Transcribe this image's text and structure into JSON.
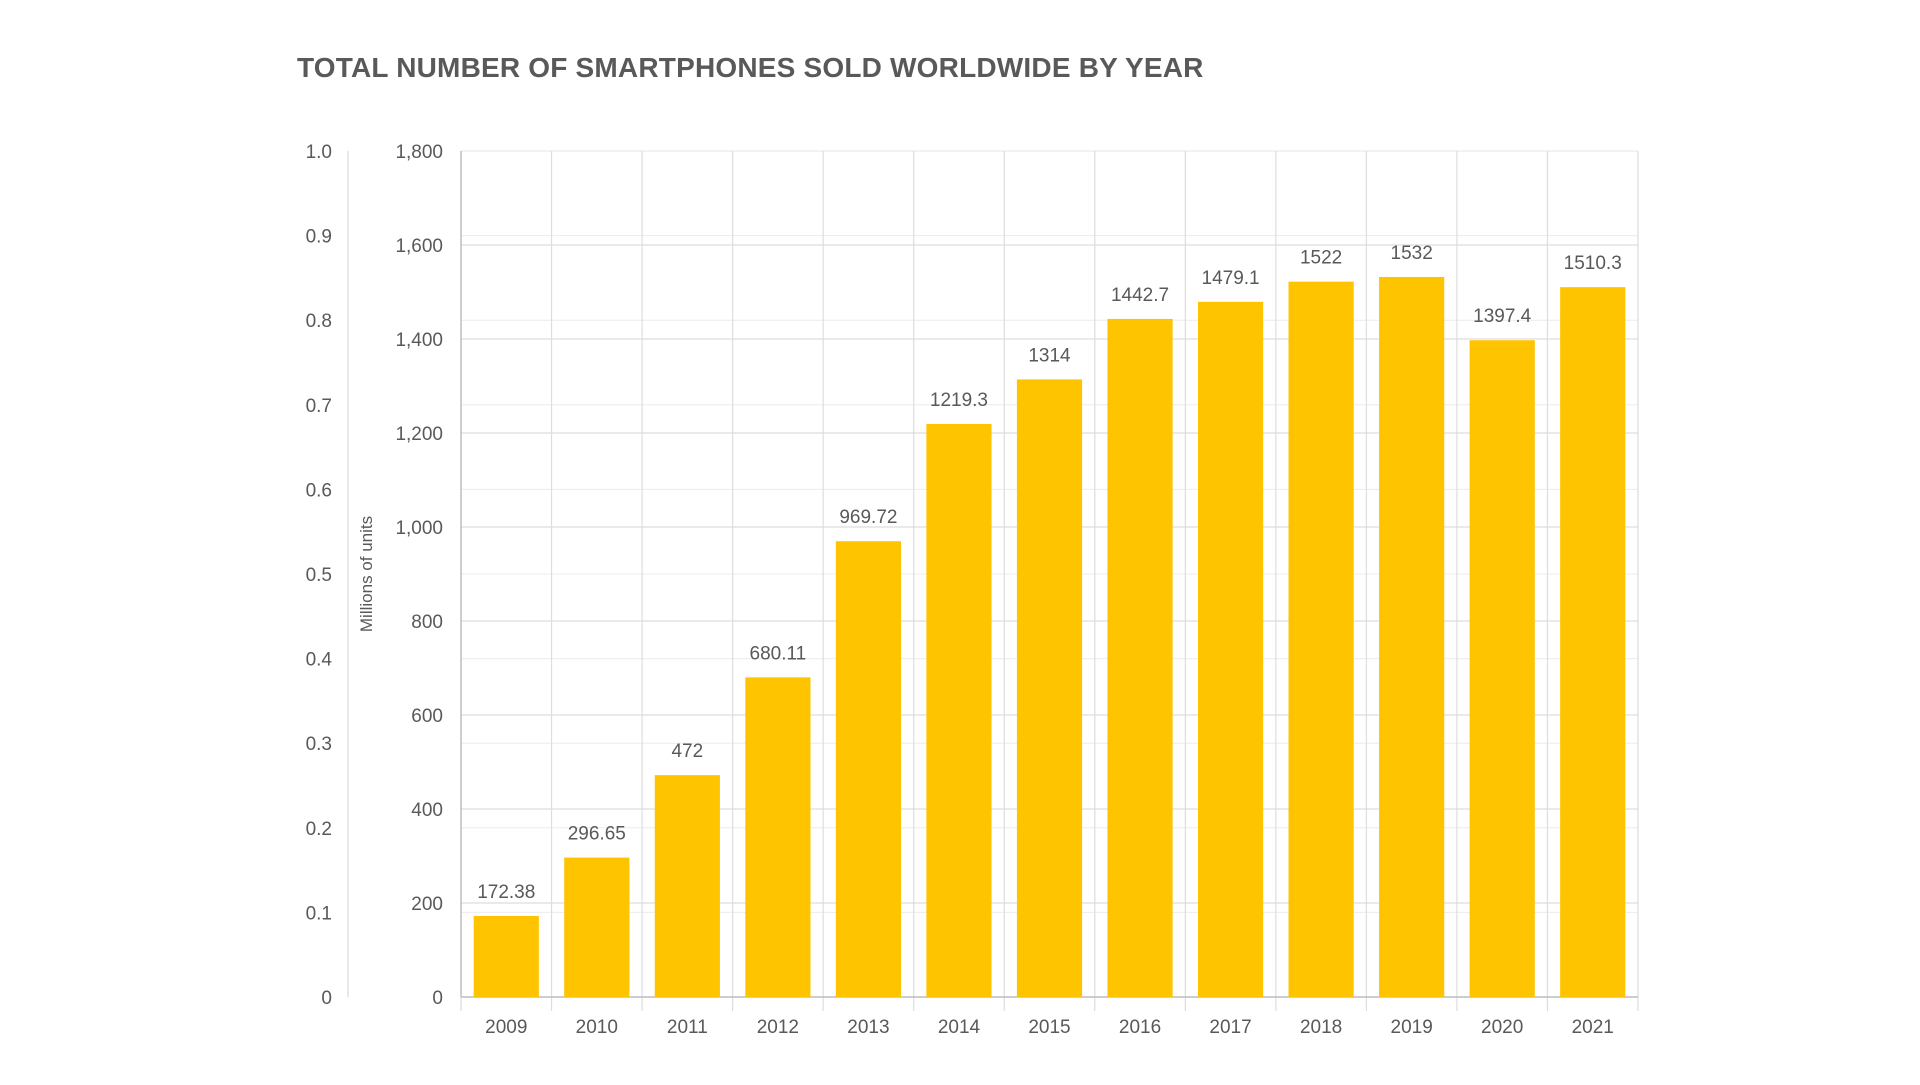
{
  "chart_data": {
    "type": "bar",
    "title": "TOTAL NUMBER OF SMARTPHONES SOLD WORLDWIDE BY YEAR",
    "xlabel": "",
    "ylabel": "Millions of units",
    "categories": [
      "2009",
      "2010",
      "2011",
      "2012",
      "2013",
      "2014",
      "2015",
      "2016",
      "2017",
      "2018",
      "2019",
      "2020",
      "2021"
    ],
    "series": [
      {
        "values": [
          172.38,
          296.65,
          472,
          680.11,
          969.72,
          1219.3,
          1314,
          1442.7,
          1479.1,
          1522,
          1532,
          1397.4,
          1510.3
        ]
      }
    ],
    "data_labels": [
      "172.38",
      "296.65",
      "472",
      "680.11",
      "969.72",
      "1219.3",
      "1314",
      "1442.7",
      "1479.1",
      "1522",
      "1532",
      "1397.4",
      "1510.3"
    ],
    "ylim": [
      0,
      1800
    ],
    "y_ticks": [
      0,
      200,
      400,
      600,
      800,
      1000,
      1200,
      1400,
      1600,
      1800
    ],
    "y_tick_labels": [
      "0",
      "200",
      "400",
      "600",
      "800",
      "1,000",
      "1,200",
      "1,400",
      "1,600",
      "1,800"
    ],
    "secondary_ylim": [
      0,
      1
    ],
    "secondary_y_tick_labels": [
      "0",
      "0.1",
      "0.2",
      "0.3",
      "0.4",
      "0.5",
      "0.6",
      "0.7",
      "0.8",
      "0.9",
      "1.0"
    ],
    "grid": true,
    "legend": "none",
    "colors": {
      "bar": "#FFC400",
      "grid": "#dddddd",
      "axis_text": "#595959",
      "title": "#595959"
    }
  }
}
